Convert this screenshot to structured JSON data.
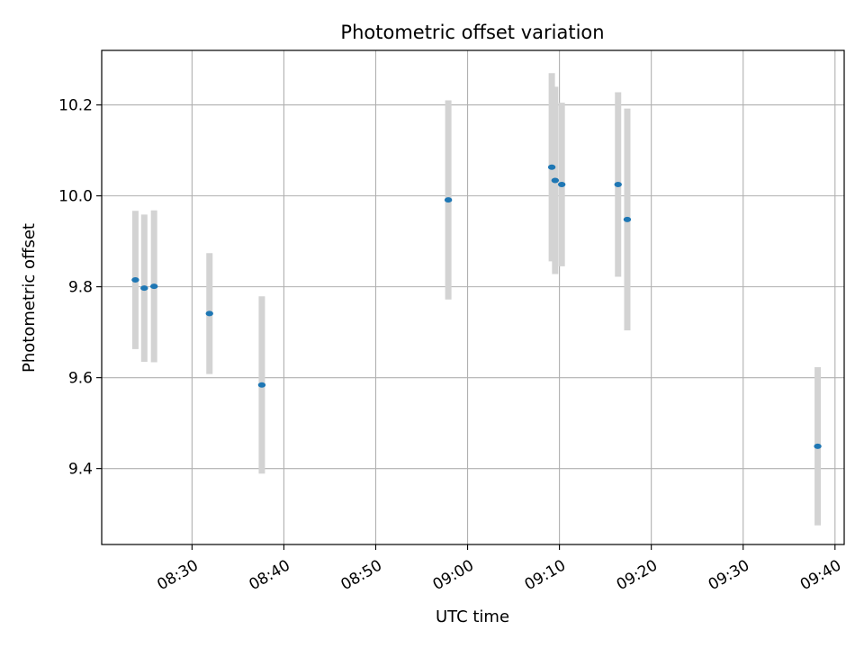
{
  "chart_data": {
    "type": "scatter",
    "title": "Photometric offset variation",
    "xlabel": "UTC time",
    "ylabel": "Photometric offset",
    "xlim": [
      "08:20:10",
      "09:41:00"
    ],
    "ylim": [
      9.233,
      10.32
    ],
    "grid": true,
    "x_ticks": [
      "08:30",
      "08:40",
      "08:50",
      "09:00",
      "09:10",
      "09:20",
      "09:30",
      "09:40"
    ],
    "y_ticks": [
      "9.4",
      "9.6",
      "9.8",
      "10.0",
      "10.2"
    ],
    "colors": {
      "marker": "#1f77b4",
      "errorbar": "#d3d3d3",
      "grid": "#b0b0b0"
    },
    "series": [
      {
        "points": [
          {
            "t": "08:23:50",
            "y": 9.815,
            "err": 0.152
          },
          {
            "t": "08:24:48",
            "y": 9.797,
            "err": 0.162
          },
          {
            "t": "08:25:52",
            "y": 9.801,
            "err": 0.167
          },
          {
            "t": "08:31:54",
            "y": 9.741,
            "err": 0.133
          },
          {
            "t": "08:37:36",
            "y": 9.584,
            "err": 0.195
          },
          {
            "t": "08:57:54",
            "y": 9.991,
            "err": 0.219
          },
          {
            "t": "09:09:10",
            "y": 10.063,
            "err": 0.207
          },
          {
            "t": "09:09:32",
            "y": 10.034,
            "err": 0.206
          },
          {
            "t": "09:10:15",
            "y": 10.025,
            "err": 0.18
          },
          {
            "t": "09:16:23",
            "y": 10.025,
            "err": 0.203
          },
          {
            "t": "09:17:23",
            "y": 9.948,
            "err": 0.244
          },
          {
            "t": "09:38:07",
            "y": 9.449,
            "err": 0.174
          }
        ]
      }
    ]
  }
}
